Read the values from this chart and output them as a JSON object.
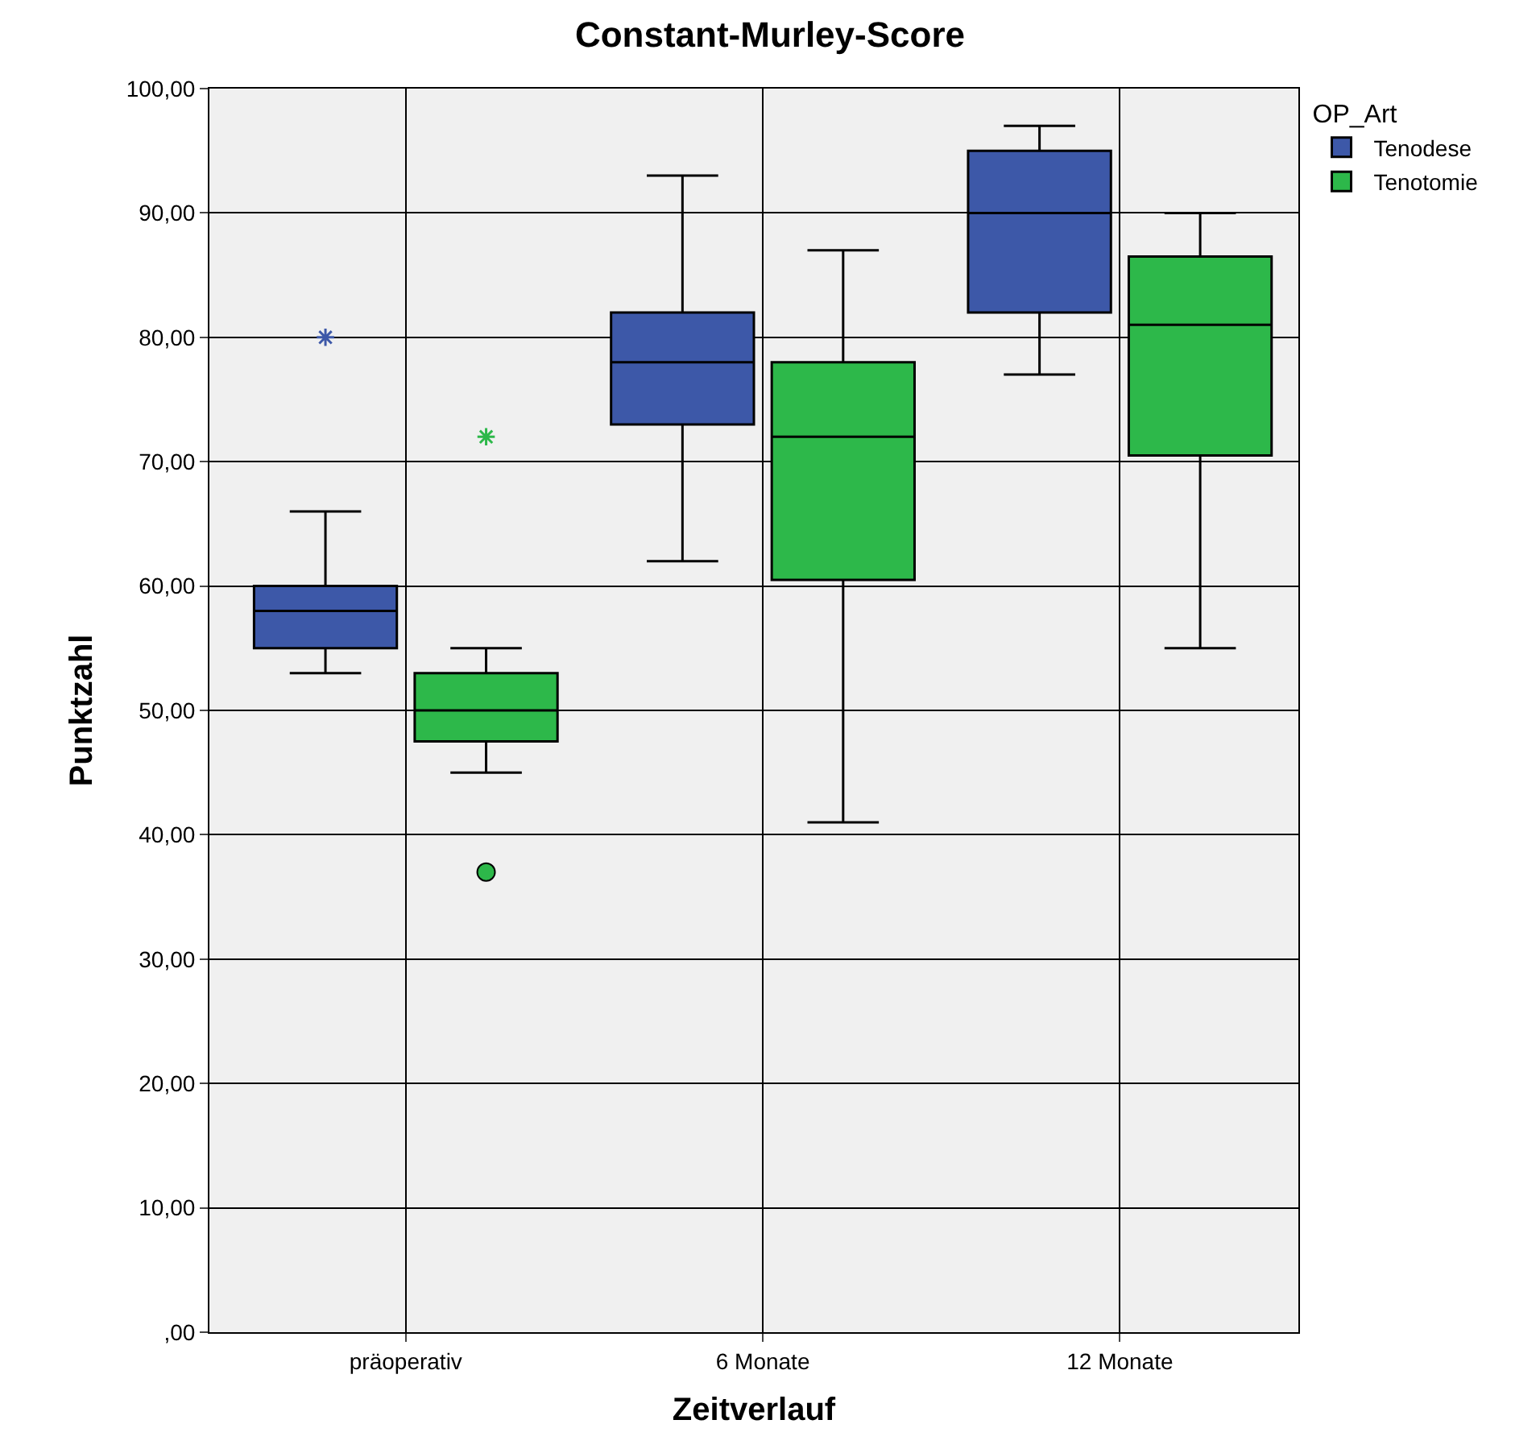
{
  "chart_data": {
    "type": "box",
    "title": "Constant-Murley-Score",
    "xlabel": "Zeitverlauf",
    "ylabel": "Punktzahl",
    "legend_title": "OP_Art",
    "categories": [
      "präoperativ",
      "6 Monate",
      "12 Monate"
    ],
    "series": [
      {
        "name": "Tenodese",
        "color": "#3d58a8",
        "boxes": [
          {
            "low": 53,
            "q1": 55,
            "median": 58,
            "q3": 60,
            "high": 66,
            "outliers": [
              80
            ]
          },
          {
            "low": 62,
            "q1": 73,
            "median": 78,
            "q3": 82,
            "high": 93
          },
          {
            "low": 77,
            "q1": 82,
            "median": 90,
            "q3": 95,
            "high": 97
          }
        ]
      },
      {
        "name": "Tenotomie",
        "color": "#2db84a",
        "boxes": [
          {
            "low": 45,
            "q1": 47.5,
            "median": 50,
            "q3": 53,
            "high": 55,
            "outliers": [
              72,
              37
            ]
          },
          {
            "low": 41,
            "q1": 60.5,
            "median": 72,
            "q3": 78,
            "high": 87
          },
          {
            "low": 55,
            "q1": 70.5,
            "median": 81,
            "q3": 86.5,
            "high": 90
          }
        ]
      }
    ],
    "ylim": [
      0,
      100
    ],
    "yticks": [
      {
        "value": 0,
        "label": ",00"
      },
      {
        "value": 10,
        "label": "10,00"
      },
      {
        "value": 20,
        "label": "20,00"
      },
      {
        "value": 30,
        "label": "30,00"
      },
      {
        "value": 40,
        "label": "40,00"
      },
      {
        "value": 50,
        "label": "50,00"
      },
      {
        "value": 60,
        "label": "60,00"
      },
      {
        "value": 70,
        "label": "70,00"
      },
      {
        "value": 80,
        "label": "80,00"
      },
      {
        "value": 90,
        "label": "90,00"
      },
      {
        "value": 100,
        "label": "100,00"
      }
    ],
    "grid": true,
    "legend": "top right"
  }
}
